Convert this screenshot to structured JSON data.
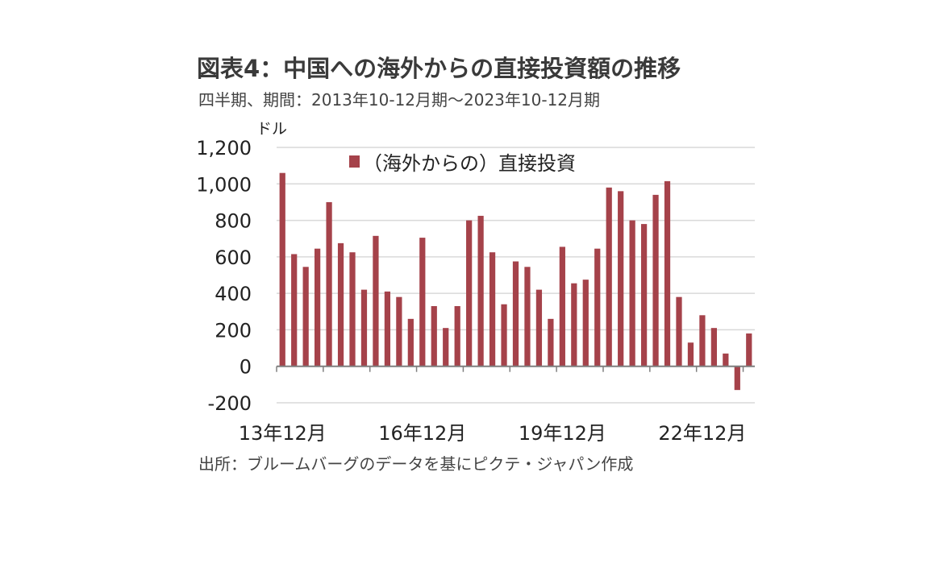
{
  "title": "図表4：中国への海外からの直接投資額の推移",
  "subtitle": "四半期、期間：2013年10-12月期～2023年10-12月期",
  "source": "出所：ブルームバーグのデータを基にピクテ・ジャパン作成",
  "colors": {
    "bar": "#a5424a",
    "grid": "#d9d9d9",
    "axis": "#7f7f7f"
  },
  "chart_data": {
    "type": "bar",
    "title": "図表4：中国への海外からの直接投資額の推移",
    "ylabel": "ドル",
    "ylim": [
      -200,
      1200
    ],
    "yticks": [
      -200,
      0,
      200,
      400,
      600,
      800,
      1000,
      1200
    ],
    "ytick_labels": [
      "-200",
      "0",
      "200",
      "400",
      "600",
      "800",
      "1,000",
      "1,200"
    ],
    "xtick_labels": [
      "13年12月",
      "16年12月",
      "19年12月",
      "22年12月"
    ],
    "xtick_positions": [
      0,
      12,
      24,
      36
    ],
    "grid": true,
    "legend_position": "top-center",
    "series": [
      {
        "name": "（海外からの）直接投資",
        "values": [
          1060,
          615,
          545,
          645,
          900,
          675,
          625,
          420,
          715,
          410,
          380,
          260,
          705,
          330,
          210,
          330,
          800,
          825,
          625,
          340,
          575,
          545,
          420,
          260,
          655,
          455,
          475,
          645,
          980,
          960,
          800,
          780,
          940,
          1015,
          380,
          130,
          280,
          210,
          70,
          -130,
          180
        ]
      }
    ]
  }
}
